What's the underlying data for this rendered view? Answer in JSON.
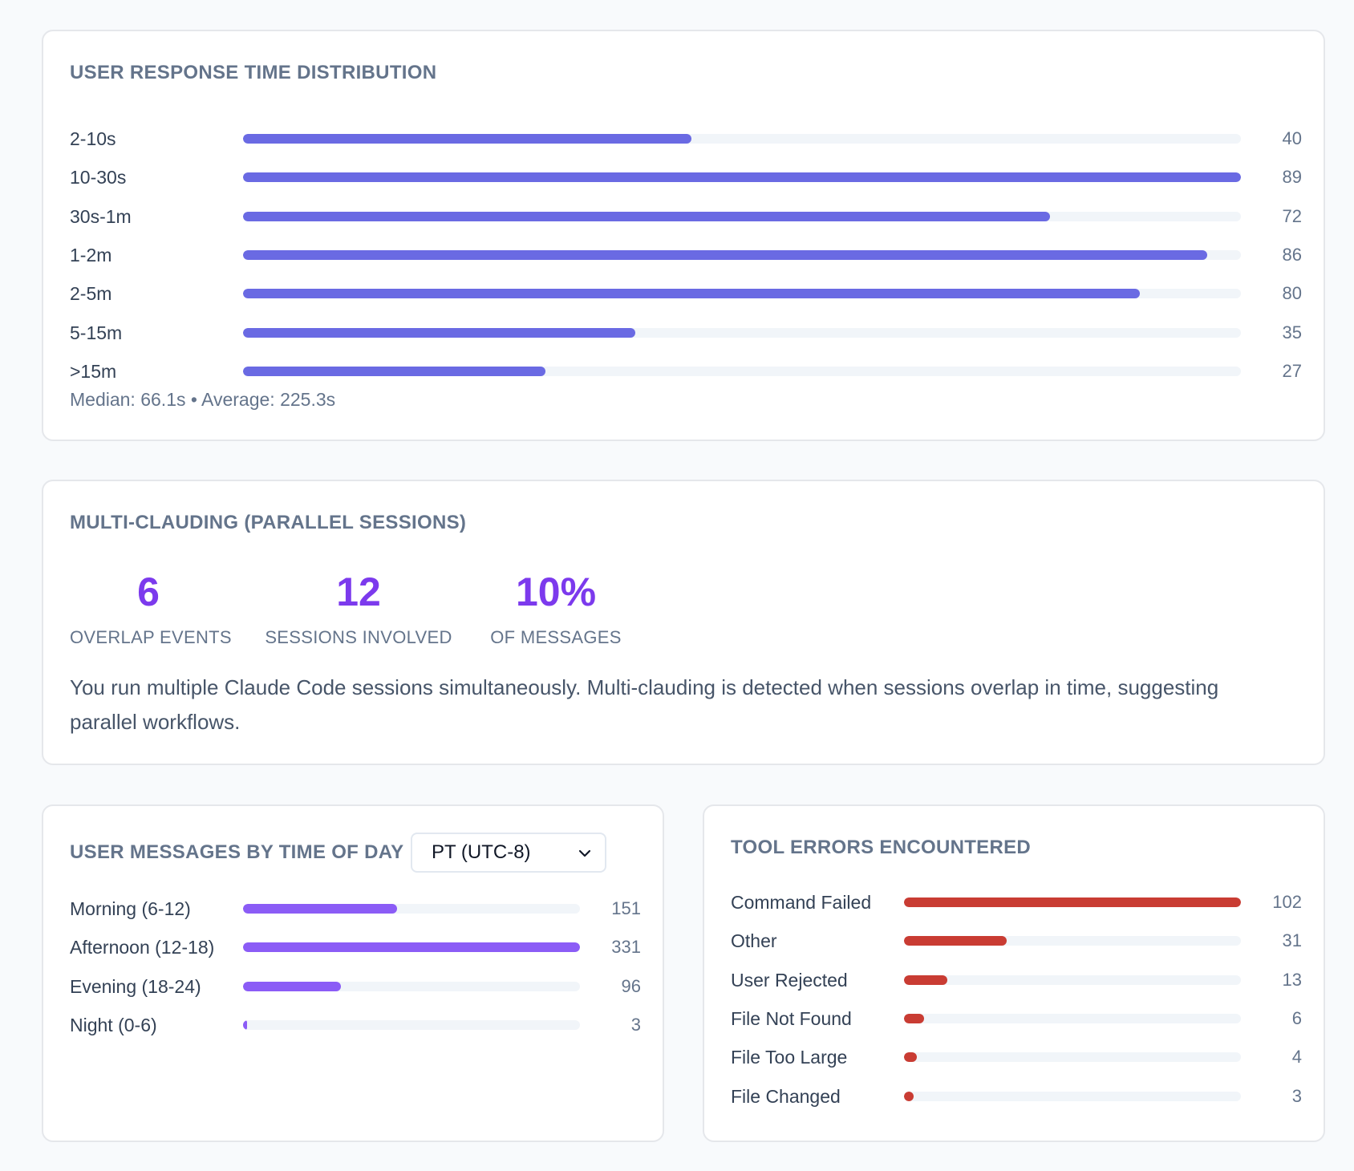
{
  "response_time": {
    "title": "USER RESPONSE TIME DISTRIBUTION",
    "bar_color": "#6a6ae3",
    "max": 89,
    "rows": [
      {
        "label": "2-10s",
        "value": 40
      },
      {
        "label": "10-30s",
        "value": 89
      },
      {
        "label": "30s-1m",
        "value": 72
      },
      {
        "label": "1-2m",
        "value": 86
      },
      {
        "label": "2-5m",
        "value": 80
      },
      {
        "label": "5-15m",
        "value": 35
      },
      {
        "label": ">15m",
        "value": 27
      }
    ],
    "summary": "Median: 66.1s • Average: 225.3s"
  },
  "multi_clauding": {
    "title": "MULTI-CLAUDING (PARALLEL SESSIONS)",
    "accent_color": "#7c3aed",
    "stats": [
      {
        "value": "6",
        "label": "OVERLAP EVENTS"
      },
      {
        "value": "12",
        "label": "SESSIONS INVOLVED"
      },
      {
        "value": "10%",
        "label": "OF MESSAGES"
      }
    ],
    "description": "You run multiple Claude Code sessions simultaneously. Multi-clauding is detected when sessions overlap in time, suggesting parallel workflows."
  },
  "time_of_day": {
    "title": "USER MESSAGES BY TIME OF DAY",
    "timezone_selected": "PT (UTC-8)",
    "chevron_icon": "chevron-down-icon",
    "bar_color": "#8b5cf6",
    "max": 331,
    "rows": [
      {
        "label": "Morning (6-12)",
        "value": 151
      },
      {
        "label": "Afternoon (12-18)",
        "value": 331
      },
      {
        "label": "Evening (18-24)",
        "value": 96
      },
      {
        "label": "Night (0-6)",
        "value": 3
      }
    ]
  },
  "tool_errors": {
    "title": "TOOL ERRORS ENCOUNTERED",
    "bar_color": "#c93c33",
    "max": 102,
    "rows": [
      {
        "label": "Command Failed",
        "value": 102
      },
      {
        "label": "Other",
        "value": 31
      },
      {
        "label": "User Rejected",
        "value": 13
      },
      {
        "label": "File Not Found",
        "value": 6
      },
      {
        "label": "File Too Large",
        "value": 4
      },
      {
        "label": "File Changed",
        "value": 3
      }
    ]
  }
}
